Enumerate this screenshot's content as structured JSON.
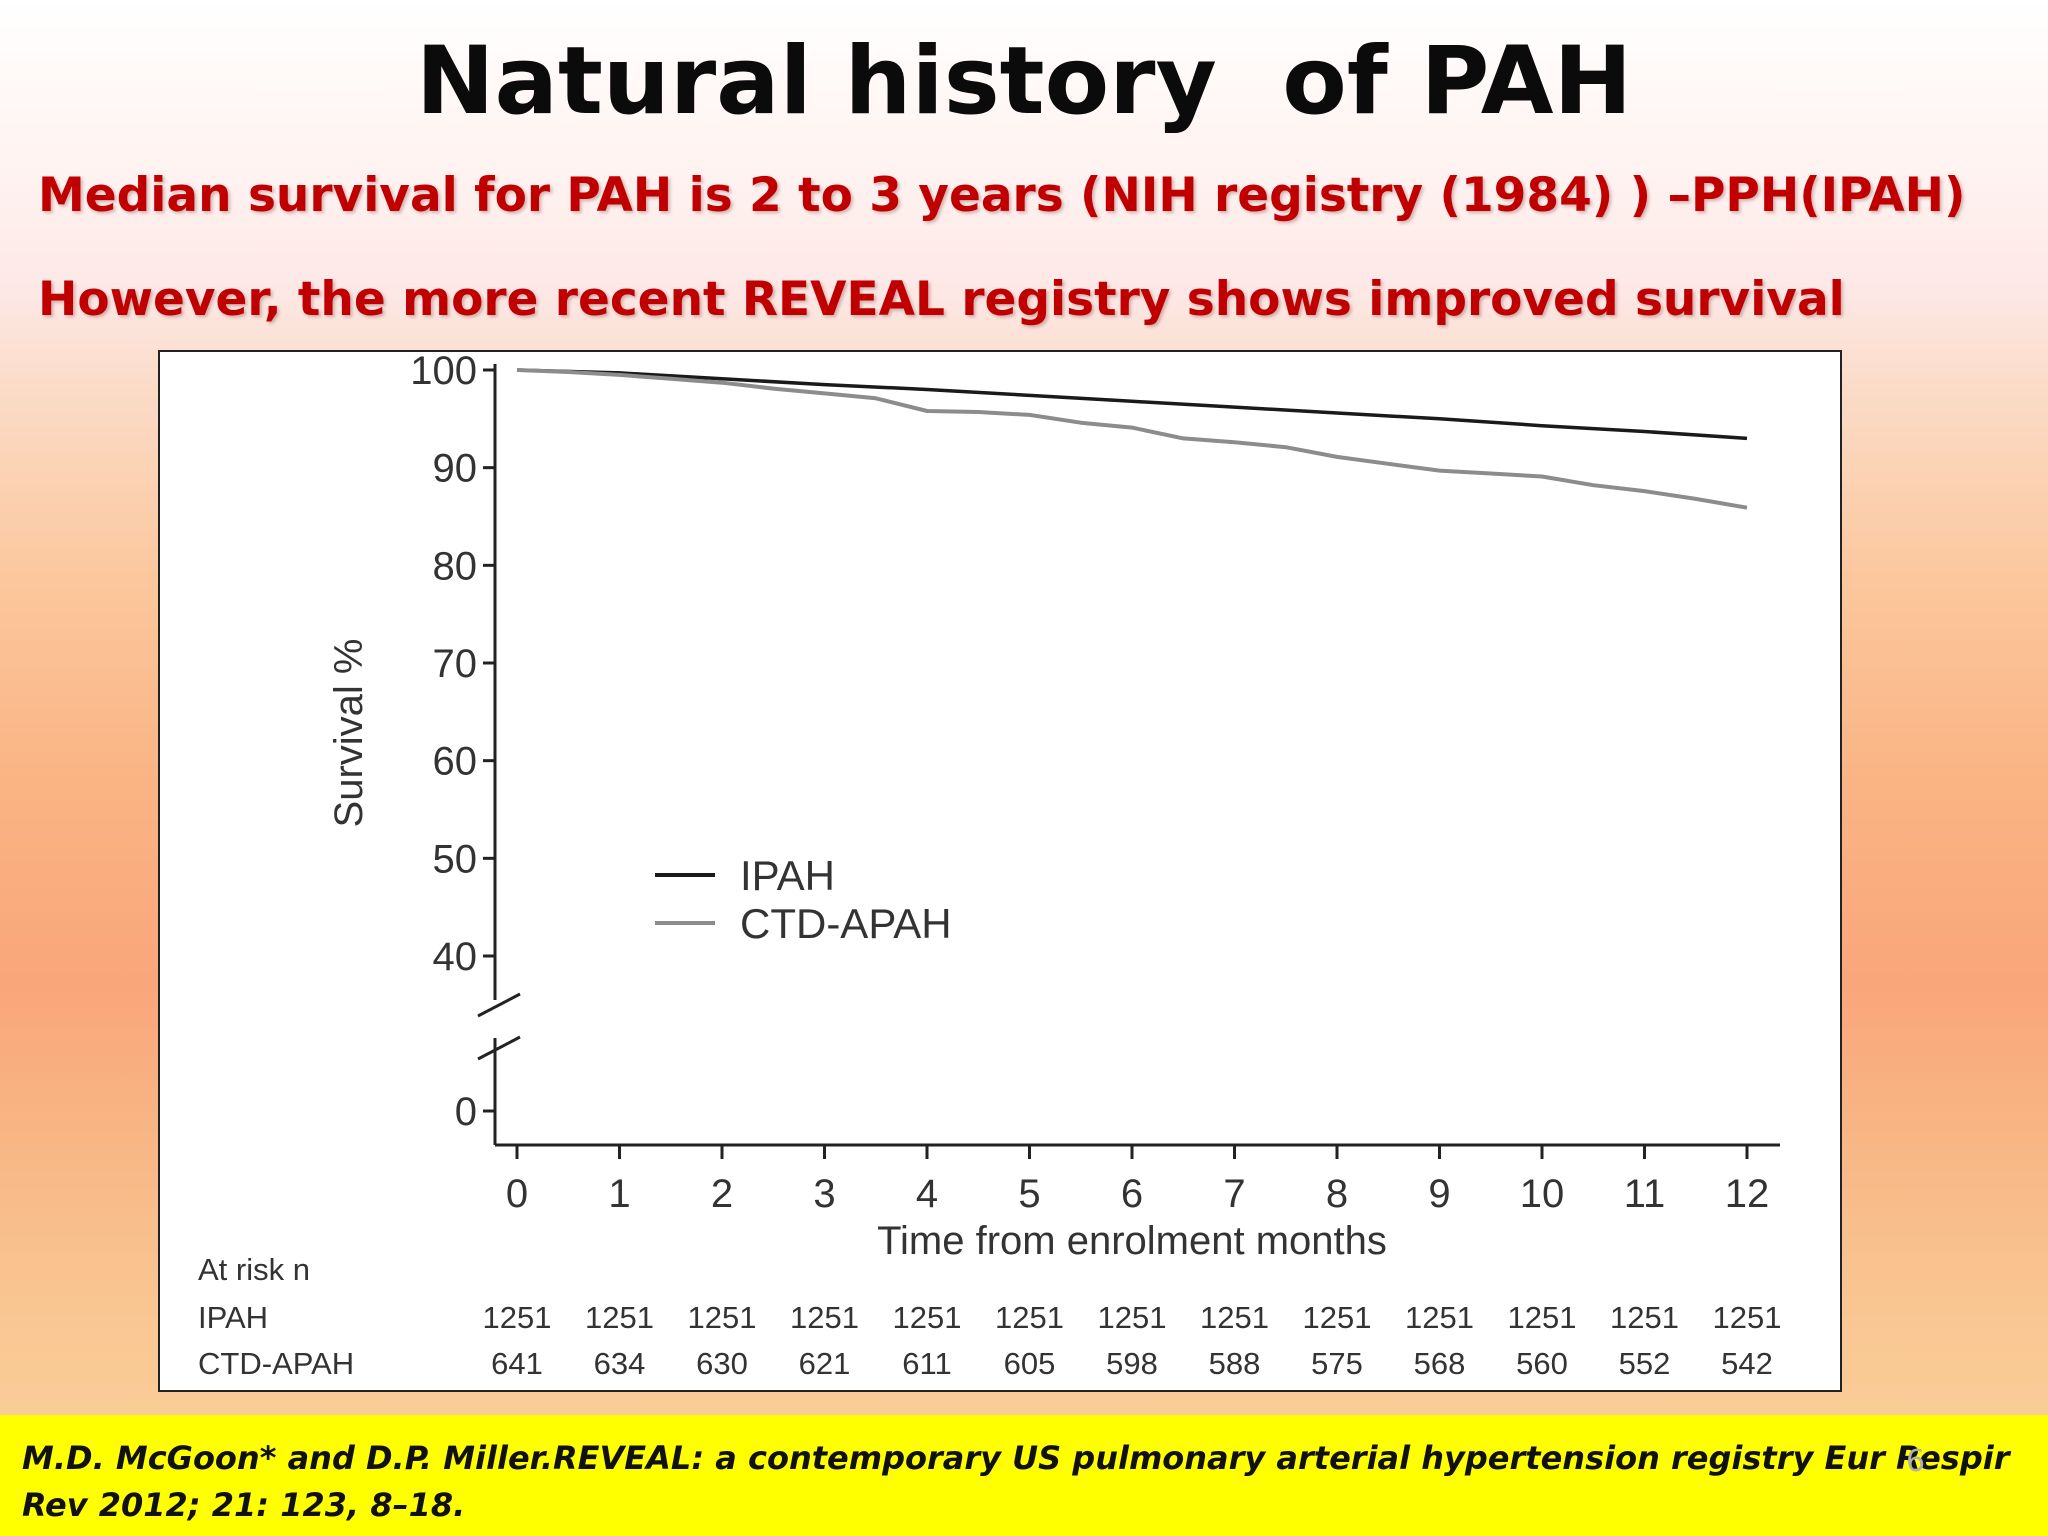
{
  "slide": {
    "title": "Natural history  of PAH",
    "bullet_1": "Median survival for PAH is 2 to 3 years (NIH registry (1984) ) –PPH(IPAH)",
    "bullet_2": "However, the more recent REVEAL registry shows improved survival",
    "citation": "M.D. McGoon* and D.P. Miller.REVEAL: a contemporary US pulmonary arterial hypertension registry Eur Respir Rev 2012; 21: 123, 8–18.",
    "page_number": "6"
  },
  "chart_data": {
    "type": "line",
    "title": "",
    "xlabel": "Time from enrolment months",
    "ylabel": "Survival %",
    "x_ticks": [
      0,
      1,
      2,
      3,
      4,
      5,
      6,
      7,
      8,
      9,
      10,
      11,
      12
    ],
    "y_ticks": [
      0,
      40,
      50,
      60,
      70,
      80,
      90,
      100
    ],
    "y_axis_break": [
      0,
      40
    ],
    "xlim": [
      0,
      12
    ],
    "legend_position": "center-left",
    "grid": false,
    "series": [
      {
        "name": "IPAH",
        "color": "#1a1a1a",
        "x": [
          0,
          1,
          2,
          3,
          4,
          5,
          6,
          7,
          8,
          9,
          10,
          11,
          12
        ],
        "y": [
          100,
          99.7,
          99.1,
          98.5,
          98.0,
          97.4,
          96.8,
          96.2,
          95.6,
          95.0,
          94.3,
          93.7,
          93.0
        ]
      },
      {
        "name": "CTD-APAH",
        "color": "#8c8c8c",
        "x": [
          0,
          0.5,
          1,
          1.5,
          2,
          2.5,
          3,
          3.5,
          4,
          4.5,
          5,
          5.5,
          6,
          6.5,
          7,
          7.5,
          8,
          8.5,
          9,
          9.5,
          10,
          10.5,
          11,
          11.5,
          12
        ],
        "y": [
          100,
          99.8,
          99.5,
          99.1,
          98.7,
          98.1,
          97.6,
          97.1,
          95.8,
          95.7,
          95.4,
          94.6,
          94.1,
          93.0,
          92.6,
          92.1,
          91.1,
          90.4,
          89.7,
          89.4,
          89.1,
          88.2,
          87.6,
          86.8,
          85.9
        ]
      }
    ],
    "at_risk": {
      "label": "At risk n",
      "rows": [
        {
          "name": "IPAH",
          "values": [
            "1251",
            "1251",
            "1251",
            "1251",
            "1251",
            "1251",
            "1251",
            "1251",
            "1251",
            "1251",
            "1251",
            "1251",
            "1251"
          ]
        },
        {
          "name": "CTD-APAH",
          "values": [
            "641",
            "634",
            "630",
            "621",
            "611",
            "605",
            "598",
            "588",
            "575",
            "568",
            "560",
            "552",
            "542"
          ]
        }
      ]
    }
  }
}
